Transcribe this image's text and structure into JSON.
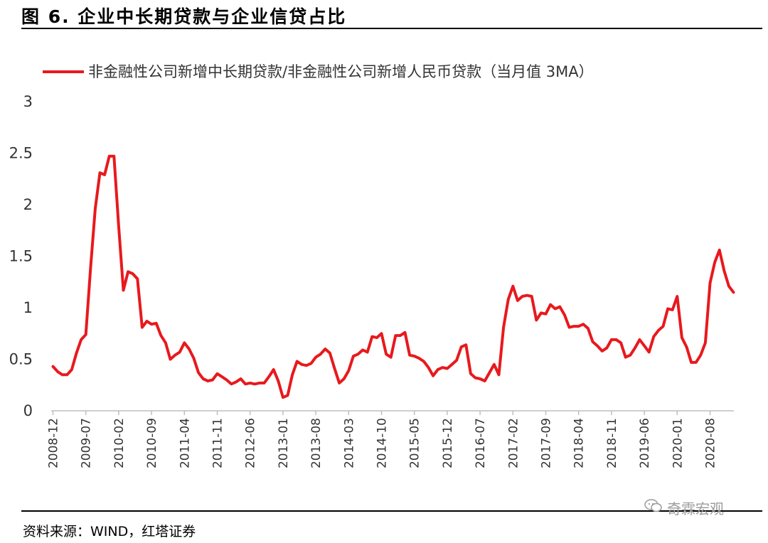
{
  "figure": {
    "title": "图 6. 企业中长期贷款与企业信贷占比",
    "source": "资料来源：WIND，红塔证券",
    "watermark": "奇霖宏观"
  },
  "colors": {
    "series": "#e8191d",
    "axis": "#bfbfbf",
    "text": "#333333"
  },
  "chart_data": {
    "type": "line",
    "title": "",
    "xlabel": "",
    "ylabel": "",
    "ylim": [
      0,
      3
    ],
    "yticks": [
      0,
      0.5,
      1,
      1.5,
      2,
      2.5,
      3
    ],
    "ytick_labels": [
      "0",
      "0.5",
      "1",
      "1.5",
      "2",
      "2.5",
      "3"
    ],
    "xtick_labels": [
      "2008-12",
      "2009-07",
      "2010-02",
      "2010-09",
      "2011-04",
      "2011-11",
      "2012-06",
      "2013-01",
      "2013-08",
      "2014-03",
      "2014-10",
      "2015-05",
      "2015-12",
      "2016-07",
      "2017-02",
      "2017-09",
      "2018-04",
      "2018-11",
      "2019-06",
      "2020-01",
      "2020-08"
    ],
    "x_start": "2008-12",
    "legend": "top",
    "grid": false,
    "series": [
      {
        "name": "非金融性公司新增中长期贷款/非金融性公司新增人民币贷款（当月值 3MA）",
        "values": [
          0.43,
          0.38,
          0.35,
          0.35,
          0.4,
          0.56,
          0.69,
          0.74,
          1.38,
          1.96,
          2.31,
          2.29,
          2.47,
          2.47,
          1.79,
          1.17,
          1.35,
          1.33,
          1.28,
          0.81,
          0.87,
          0.84,
          0.85,
          0.73,
          0.66,
          0.5,
          0.54,
          0.57,
          0.66,
          0.6,
          0.51,
          0.37,
          0.31,
          0.29,
          0.3,
          0.36,
          0.33,
          0.3,
          0.26,
          0.28,
          0.31,
          0.26,
          0.27,
          0.26,
          0.27,
          0.27,
          0.33,
          0.4,
          0.29,
          0.13,
          0.15,
          0.35,
          0.48,
          0.45,
          0.44,
          0.46,
          0.52,
          0.55,
          0.6,
          0.56,
          0.41,
          0.27,
          0.31,
          0.39,
          0.53,
          0.55,
          0.59,
          0.57,
          0.72,
          0.71,
          0.75,
          0.55,
          0.52,
          0.73,
          0.73,
          0.76,
          0.54,
          0.53,
          0.51,
          0.48,
          0.42,
          0.34,
          0.4,
          0.42,
          0.41,
          0.45,
          0.49,
          0.62,
          0.64,
          0.36,
          0.32,
          0.31,
          0.29,
          0.37,
          0.45,
          0.35,
          0.81,
          1.08,
          1.21,
          1.07,
          1.11,
          1.12,
          1.11,
          0.88,
          0.95,
          0.94,
          1.03,
          0.99,
          1.01,
          0.93,
          0.81,
          0.82,
          0.82,
          0.84,
          0.8,
          0.67,
          0.63,
          0.58,
          0.61,
          0.69,
          0.69,
          0.66,
          0.52,
          0.54,
          0.61,
          0.69,
          0.63,
          0.57,
          0.72,
          0.78,
          0.82,
          0.99,
          0.98,
          1.11,
          0.71,
          0.62,
          0.47,
          0.47,
          0.54,
          0.66,
          1.24,
          1.44,
          1.56,
          1.36,
          1.21,
          1.15
        ]
      }
    ]
  }
}
